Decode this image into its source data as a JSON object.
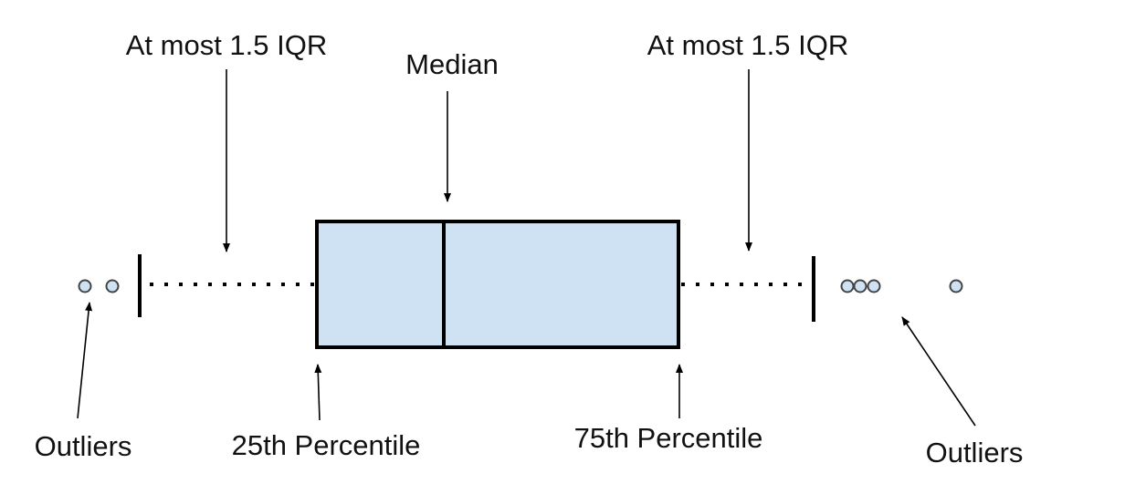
{
  "labels": {
    "whisker_left": "At most 1.5 IQR",
    "median": "Median",
    "whisker_right": "At most 1.5 IQR",
    "outliers_left": "Outliers",
    "q1": "25th Percentile",
    "q3": "75th Percentile",
    "outliers_right": "Outliers"
  },
  "colors": {
    "box_fill": "#cfe2f3",
    "stroke": "#000000",
    "text": "#111111",
    "outlier_fill": "#cfe2f3",
    "outlier_stroke": "#444444"
  }
}
